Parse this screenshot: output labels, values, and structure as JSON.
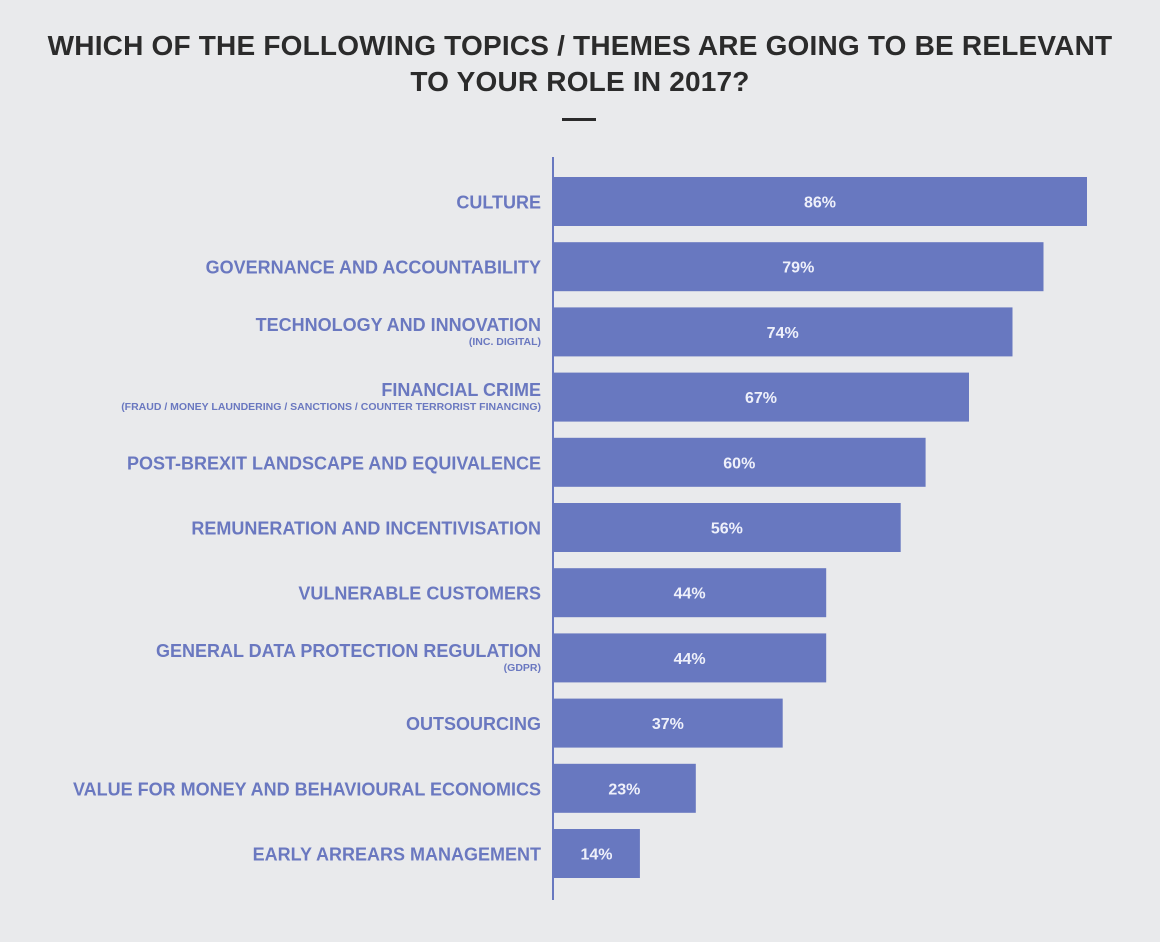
{
  "chart_data": {
    "type": "bar",
    "orientation": "horizontal",
    "title_lines": [
      "WHICH OF THE FOLLOWING TOPICS / THEMES ARE GOING TO BE RELEVANT",
      "TO YOUR ROLE IN 2017?"
    ],
    "categories": [
      {
        "label": "CULTURE",
        "sublabel": ""
      },
      {
        "label": "GOVERNANCE AND ACCOUNTABILITY",
        "sublabel": ""
      },
      {
        "label": "TECHNOLOGY AND INNOVATION",
        "sublabel": "(INC. DIGITAL)"
      },
      {
        "label": "FINANCIAL CRIME",
        "sublabel": "(FRAUD / MONEY LAUNDERING / SANCTIONS / COUNTER TERRORIST FINANCING)"
      },
      {
        "label": "POST-BREXIT LANDSCAPE AND EQUIVALENCE",
        "sublabel": ""
      },
      {
        "label": "REMUNERATION AND INCENTIVISATION",
        "sublabel": ""
      },
      {
        "label": "VULNERABLE CUSTOMERS",
        "sublabel": ""
      },
      {
        "label": "GENERAL DATA PROTECTION REGULATION",
        "sublabel": "(GDPR)"
      },
      {
        "label": "OUTSOURCING",
        "sublabel": ""
      },
      {
        "label": "VALUE FOR MONEY AND BEHAVIOURAL ECONOMICS",
        "sublabel": ""
      },
      {
        "label": "EARLY ARREARS MANAGEMENT",
        "sublabel": ""
      }
    ],
    "values": [
      86,
      79,
      74,
      67,
      60,
      56,
      44,
      44,
      37,
      23,
      14
    ],
    "value_labels": [
      "86%",
      "79%",
      "74%",
      "67%",
      "60%",
      "56%",
      "44%",
      "44%",
      "37%",
      "23%",
      "14%"
    ],
    "value_unit": "%",
    "xlim": [
      0,
      100
    ],
    "grid": false,
    "legend": "none",
    "colors": {
      "bar": "#6878c0",
      "axis": "#6878c0",
      "category_text": "#6a78c0",
      "value_text": "#eef0fa",
      "title_text": "#2b2b2b",
      "background": "#e9eaec"
    }
  }
}
